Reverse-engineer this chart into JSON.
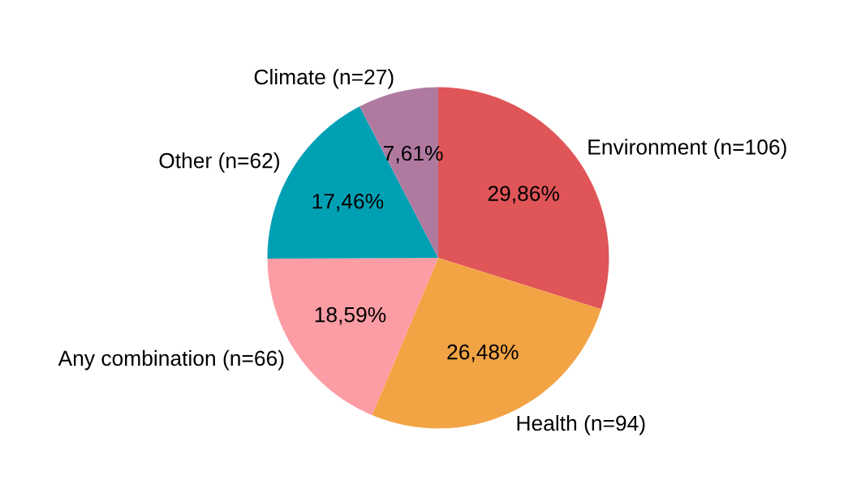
{
  "chart_data": {
    "type": "pie",
    "categories": [
      "Environment (n=106)",
      "Health (n=94)",
      "Any combination (n=66)",
      "Other (n=62)",
      "Climate (n=27)"
    ],
    "values": [
      29.86,
      26.48,
      18.59,
      17.46,
      7.61
    ],
    "colors": [
      "#e05558",
      "#f2a445",
      "#fc9ca4",
      "#00a0b4",
      "#b07aa0"
    ],
    "value_labels": [
      "29,86%",
      "26,48%",
      "18,59%",
      "17,46%",
      "7,61%"
    ]
  }
}
